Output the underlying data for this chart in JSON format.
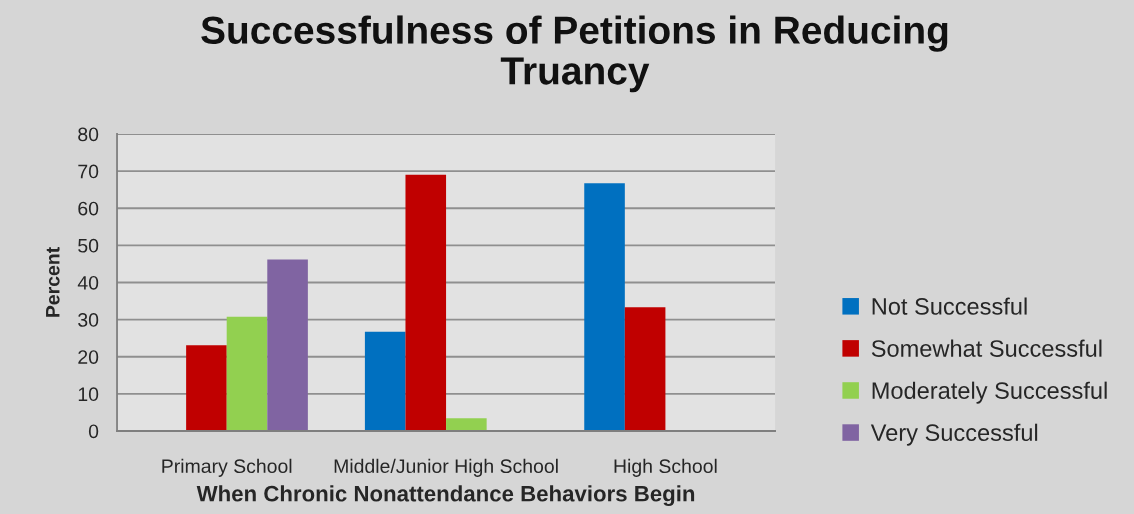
{
  "chart_data": {
    "type": "bar",
    "title": "Successfulness of Petitions in Reducing Truancy",
    "xlabel": "When Chronic Nonattendance Behaviors Begin",
    "ylabel": "Percent",
    "categories": [
      "Primary School",
      "Middle/Junior High School",
      "High School"
    ],
    "series": [
      {
        "name": "Not Successful",
        "color": "#0070c0",
        "values": [
          null,
          26.7,
          66.7
        ]
      },
      {
        "name": "Somewhat Successful",
        "color": "#c00000",
        "values": [
          23.1,
          69,
          33.3
        ]
      },
      {
        "name": "Moderately Successful",
        "color": "#92d050",
        "values": [
          30.8,
          3.4,
          null
        ]
      },
      {
        "name": "Very Successful",
        "color": "#8064a2",
        "values": [
          46.2,
          null,
          null
        ]
      }
    ],
    "ylim": [
      0,
      80
    ],
    "yticks": [
      0,
      10,
      20,
      30,
      40,
      50,
      60,
      70,
      80
    ],
    "grid": "y",
    "legend": "right"
  }
}
